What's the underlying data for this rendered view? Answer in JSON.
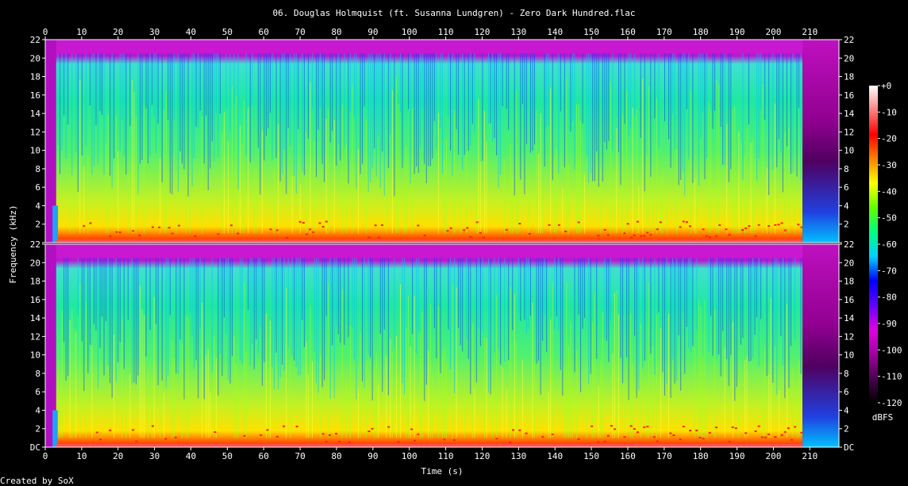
{
  "title": "06. Douglas Holmquist (ft. Susanna Lundgren) - Zero Dark Hundred.flac",
  "credit": "Created by SoX",
  "chart_data": {
    "type": "heatmap",
    "title": "06. Douglas Holmquist (ft. Susanna Lundgren) - Zero Dark Hundred.flac",
    "xlabel": "Time (s)",
    "ylabel": "Frequency (kHz)",
    "xlim": [
      0,
      218
    ],
    "ylim": [
      0,
      22
    ],
    "x_ticks": [
      "0",
      "10",
      "20",
      "30",
      "40",
      "50",
      "60",
      "70",
      "80",
      "90",
      "100",
      "110",
      "120",
      "130",
      "140",
      "150",
      "160",
      "170",
      "180",
      "190",
      "200",
      "210"
    ],
    "y_ticks": [
      "DC",
      "2",
      "4",
      "6",
      "8",
      "10",
      "12",
      "14",
      "16",
      "18",
      "20",
      "22"
    ],
    "channels": 2,
    "audio_end_s": 208,
    "lowpass_khz": 20.5,
    "colorbar": {
      "label": "dBFS",
      "ticks": [
        "+0",
        "-10",
        "-20",
        "-30",
        "-40",
        "-50",
        "-60",
        "-70",
        "-80",
        "-90",
        "-100",
        "-110",
        "-120"
      ],
      "range": [
        -120,
        0
      ],
      "stops": [
        "#000000",
        "#4b0050",
        "#a000a0",
        "#e000e0",
        "#6000ff",
        "#0000ff",
        "#00d0ff",
        "#00ff80",
        "#60ff00",
        "#ffff00",
        "#ff8000",
        "#ff0000",
        "#ff8080",
        "#ffffff"
      ]
    }
  }
}
